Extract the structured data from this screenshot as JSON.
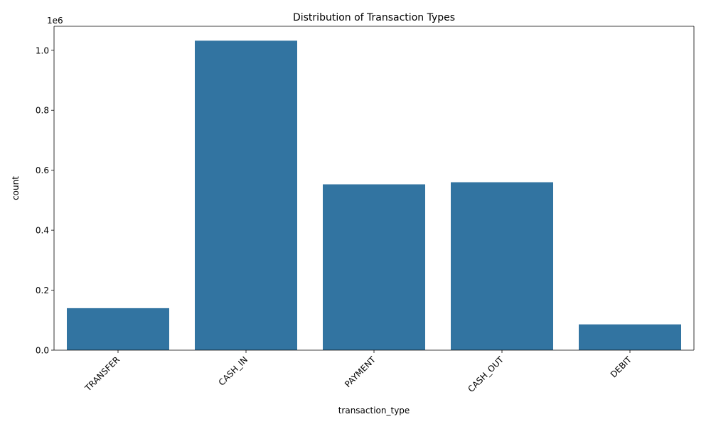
{
  "chart_data": {
    "type": "bar",
    "title": "Distribution of Transaction Types",
    "xlabel": "transaction_type",
    "ylabel": "count",
    "y_offset_label": "1e6",
    "categories": [
      "TRANSFER",
      "CASH_IN",
      "PAYMENT",
      "CASH_OUT",
      "DEBIT"
    ],
    "values": [
      140000,
      1032000,
      553000,
      560000,
      86000
    ],
    "ylim": [
      0,
      1080000
    ],
    "yticks": [
      0,
      200000,
      400000,
      600000,
      800000,
      1000000
    ],
    "ytick_labels": [
      "0.0",
      "0.2",
      "0.4",
      "0.6",
      "0.8",
      "1.0"
    ],
    "xtick_rotation": "45 degrees",
    "grid": false,
    "bar_color": "#3274a1"
  }
}
